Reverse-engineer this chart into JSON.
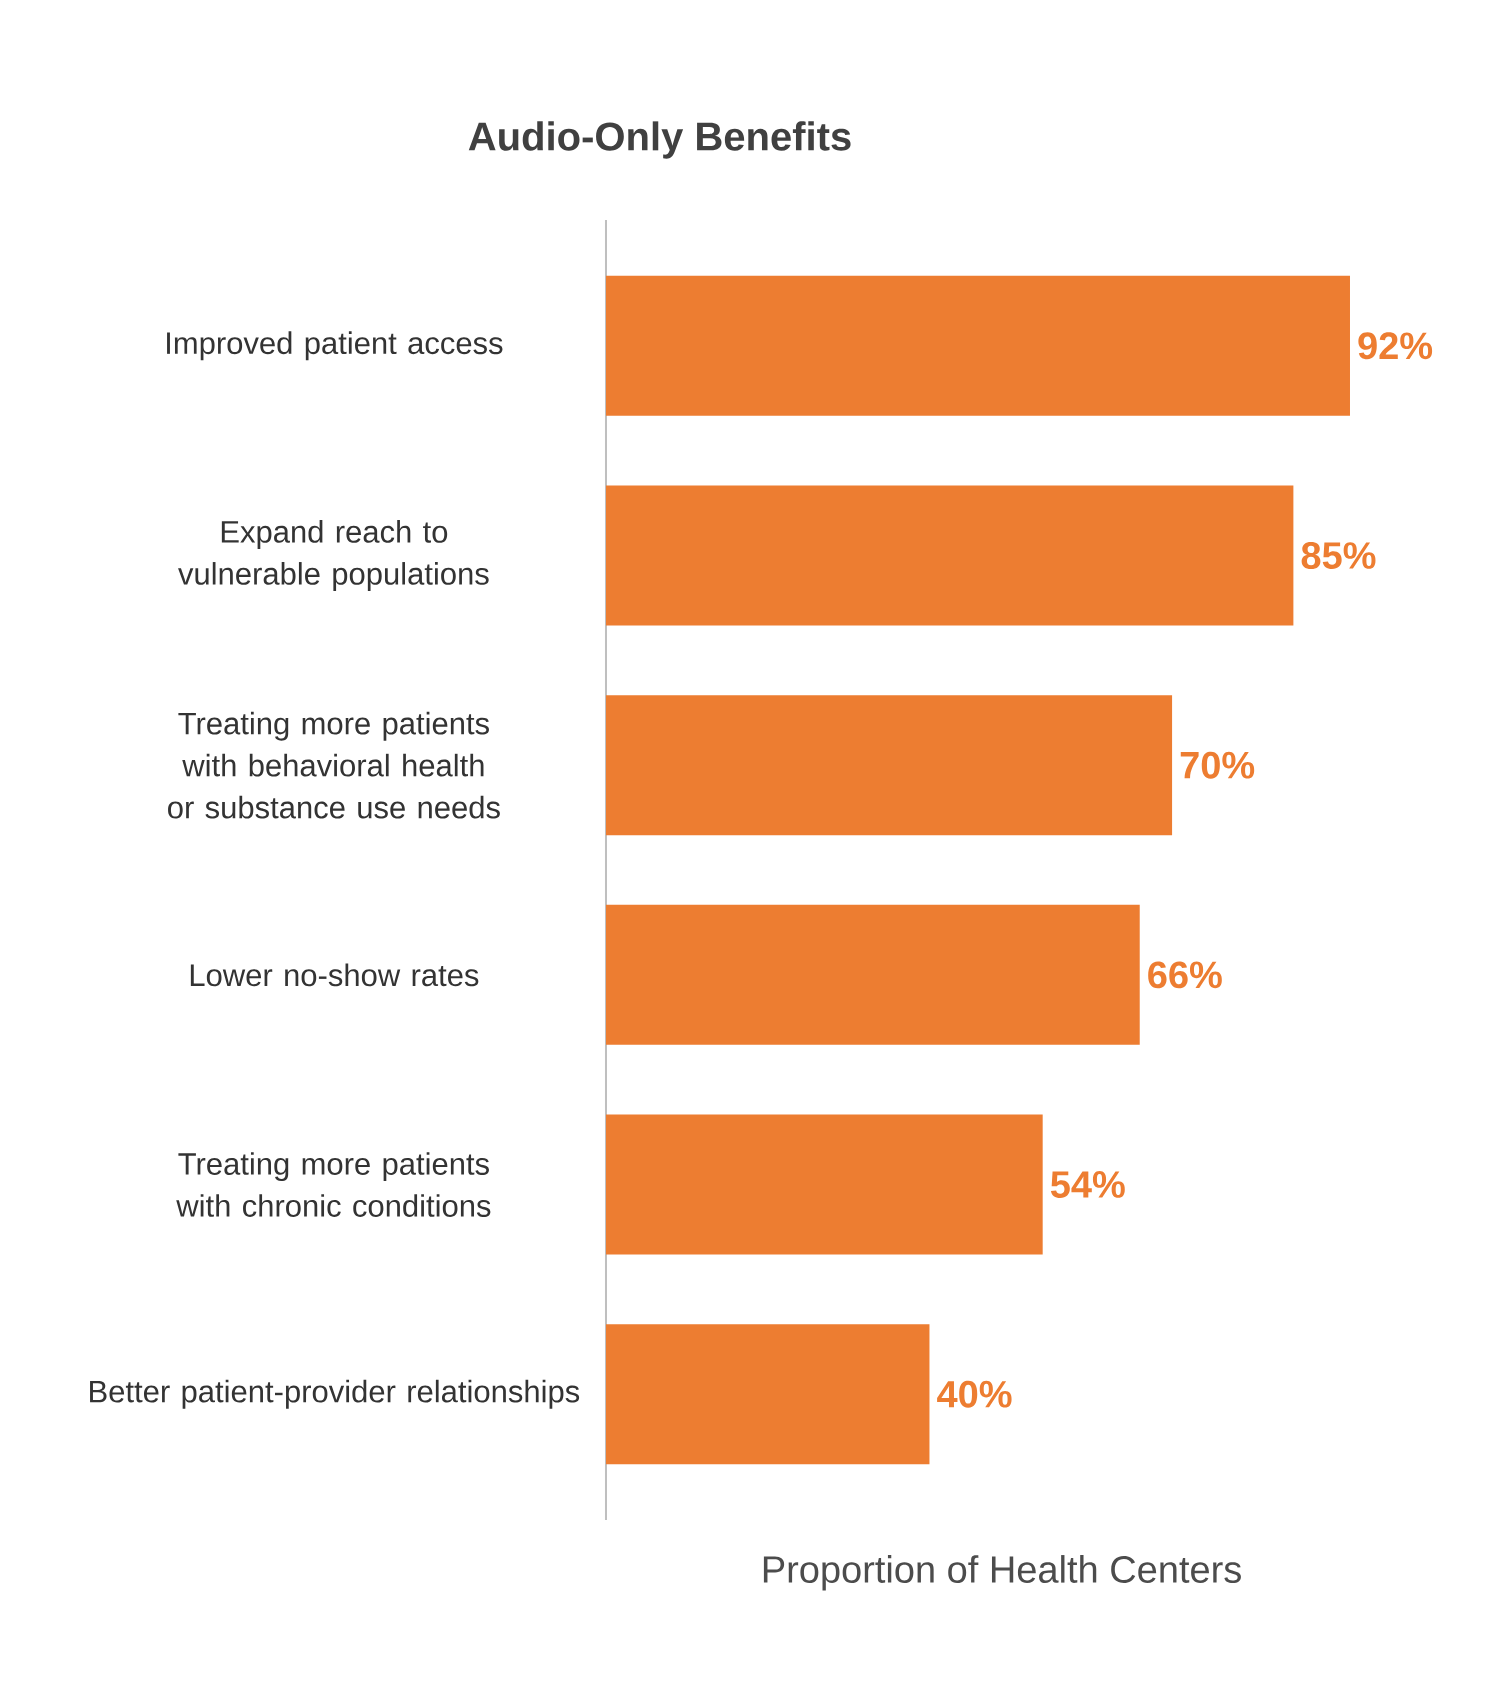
{
  "chart_data": {
    "type": "bar",
    "orientation": "horizontal",
    "title": "Audio-Only Benefits",
    "xlabel": "Proportion of Health Centers",
    "categories": [
      "Improved patient access",
      "Expand reach to vulnerable populations",
      "Treating more patients with behavioral health or substance use needs",
      "Lower no-show rates",
      "Treating more patients with chronic conditions",
      "Better patient-provider relationships"
    ],
    "values": [
      92,
      85,
      70,
      66,
      54,
      40
    ],
    "value_labels": [
      "92%",
      "85%",
      "70%",
      "66%",
      "54%",
      "40%"
    ],
    "color": "#ed7d31"
  }
}
